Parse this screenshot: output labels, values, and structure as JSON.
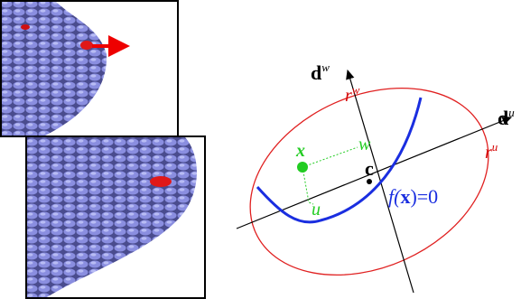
{
  "axes": [
    {
      "base": "d",
      "sup": "w"
    },
    {
      "base": "d",
      "sup": "u"
    }
  ],
  "radii": [
    {
      "base": "r",
      "sup": "w"
    },
    {
      "base": "r",
      "sup": "u"
    }
  ],
  "point": "x",
  "coords": [
    "w",
    "u"
  ],
  "center": "c",
  "curve": {
    "pre": "f(",
    "arg": "x",
    "post": ")=0"
  }
}
